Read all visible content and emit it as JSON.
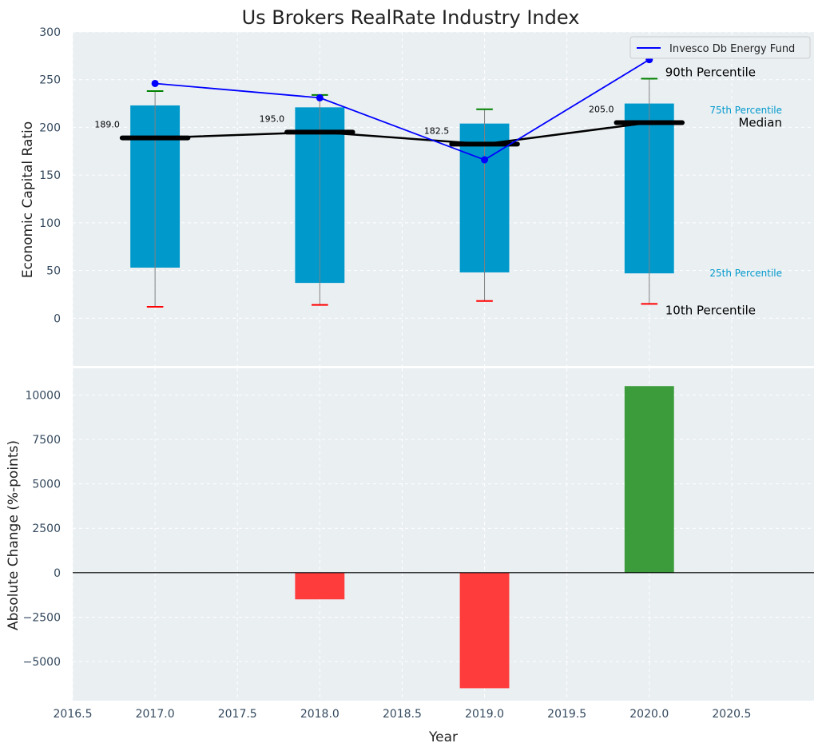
{
  "chart_data": [
    {
      "type": "bar",
      "title": "Us Brokers RealRate Industry Index",
      "xlabel": "",
      "ylabel": "Economic Capital Ratio",
      "ylim": [
        -50,
        300
      ],
      "yticks": [
        0,
        50,
        100,
        150,
        200,
        250,
        300
      ],
      "xlim": [
        2016.5,
        2021.0
      ],
      "grid": true,
      "legend": {
        "placement": "top-right",
        "entries": [
          "Invesco Db Energy Fund"
        ]
      },
      "x": [
        2017,
        2018,
        2019,
        2020
      ],
      "percentiles": {
        "p10": [
          12,
          14,
          18,
          15
        ],
        "p25": [
          53,
          37,
          48,
          47
        ],
        "median": [
          189.0,
          195.0,
          182.5,
          205.0
        ],
        "p75": [
          223,
          221,
          204,
          225
        ],
        "p90": [
          238,
          234,
          219,
          251
        ]
      },
      "median_labels": [
        "189.0",
        "195.0",
        "182.5",
        "205.0"
      ],
      "series": [
        {
          "name": "Invesco Db Energy Fund",
          "values": [
            246,
            231,
            166,
            271
          ]
        }
      ],
      "annotations": {
        "p90": "90th Percentile",
        "p75": "75th Percentile",
        "median": "Median",
        "p25": "25th Percentile",
        "p10": "10th Percentile"
      },
      "colors": {
        "box": "#0099cc",
        "fund_line": "#0000ff",
        "median_line": "#000000",
        "p90_cap": "#008000",
        "p10_cap": "#ff0000",
        "whisker": "#808080",
        "plot_bg": "#eaeff2"
      }
    },
    {
      "type": "bar",
      "xlabel": "Year",
      "ylabel": "Absolute Change (%-points)",
      "ylim": [
        -7200,
        11500
      ],
      "yticks": [
        -5000,
        -2500,
        0,
        2500,
        5000,
        7500,
        10000
      ],
      "xlim": [
        2016.5,
        2021.0
      ],
      "xticks": [
        2016.5,
        2017.0,
        2017.5,
        2018.0,
        2018.5,
        2019.0,
        2019.5,
        2020.0,
        2020.5
      ],
      "grid": true,
      "x": [
        2018,
        2019,
        2020
      ],
      "values": [
        -1500,
        -6500,
        10500
      ],
      "colors": {
        "positive": "#3c9c3c",
        "negative": "#ff3c3c",
        "zero_line": "#000000"
      }
    }
  ]
}
